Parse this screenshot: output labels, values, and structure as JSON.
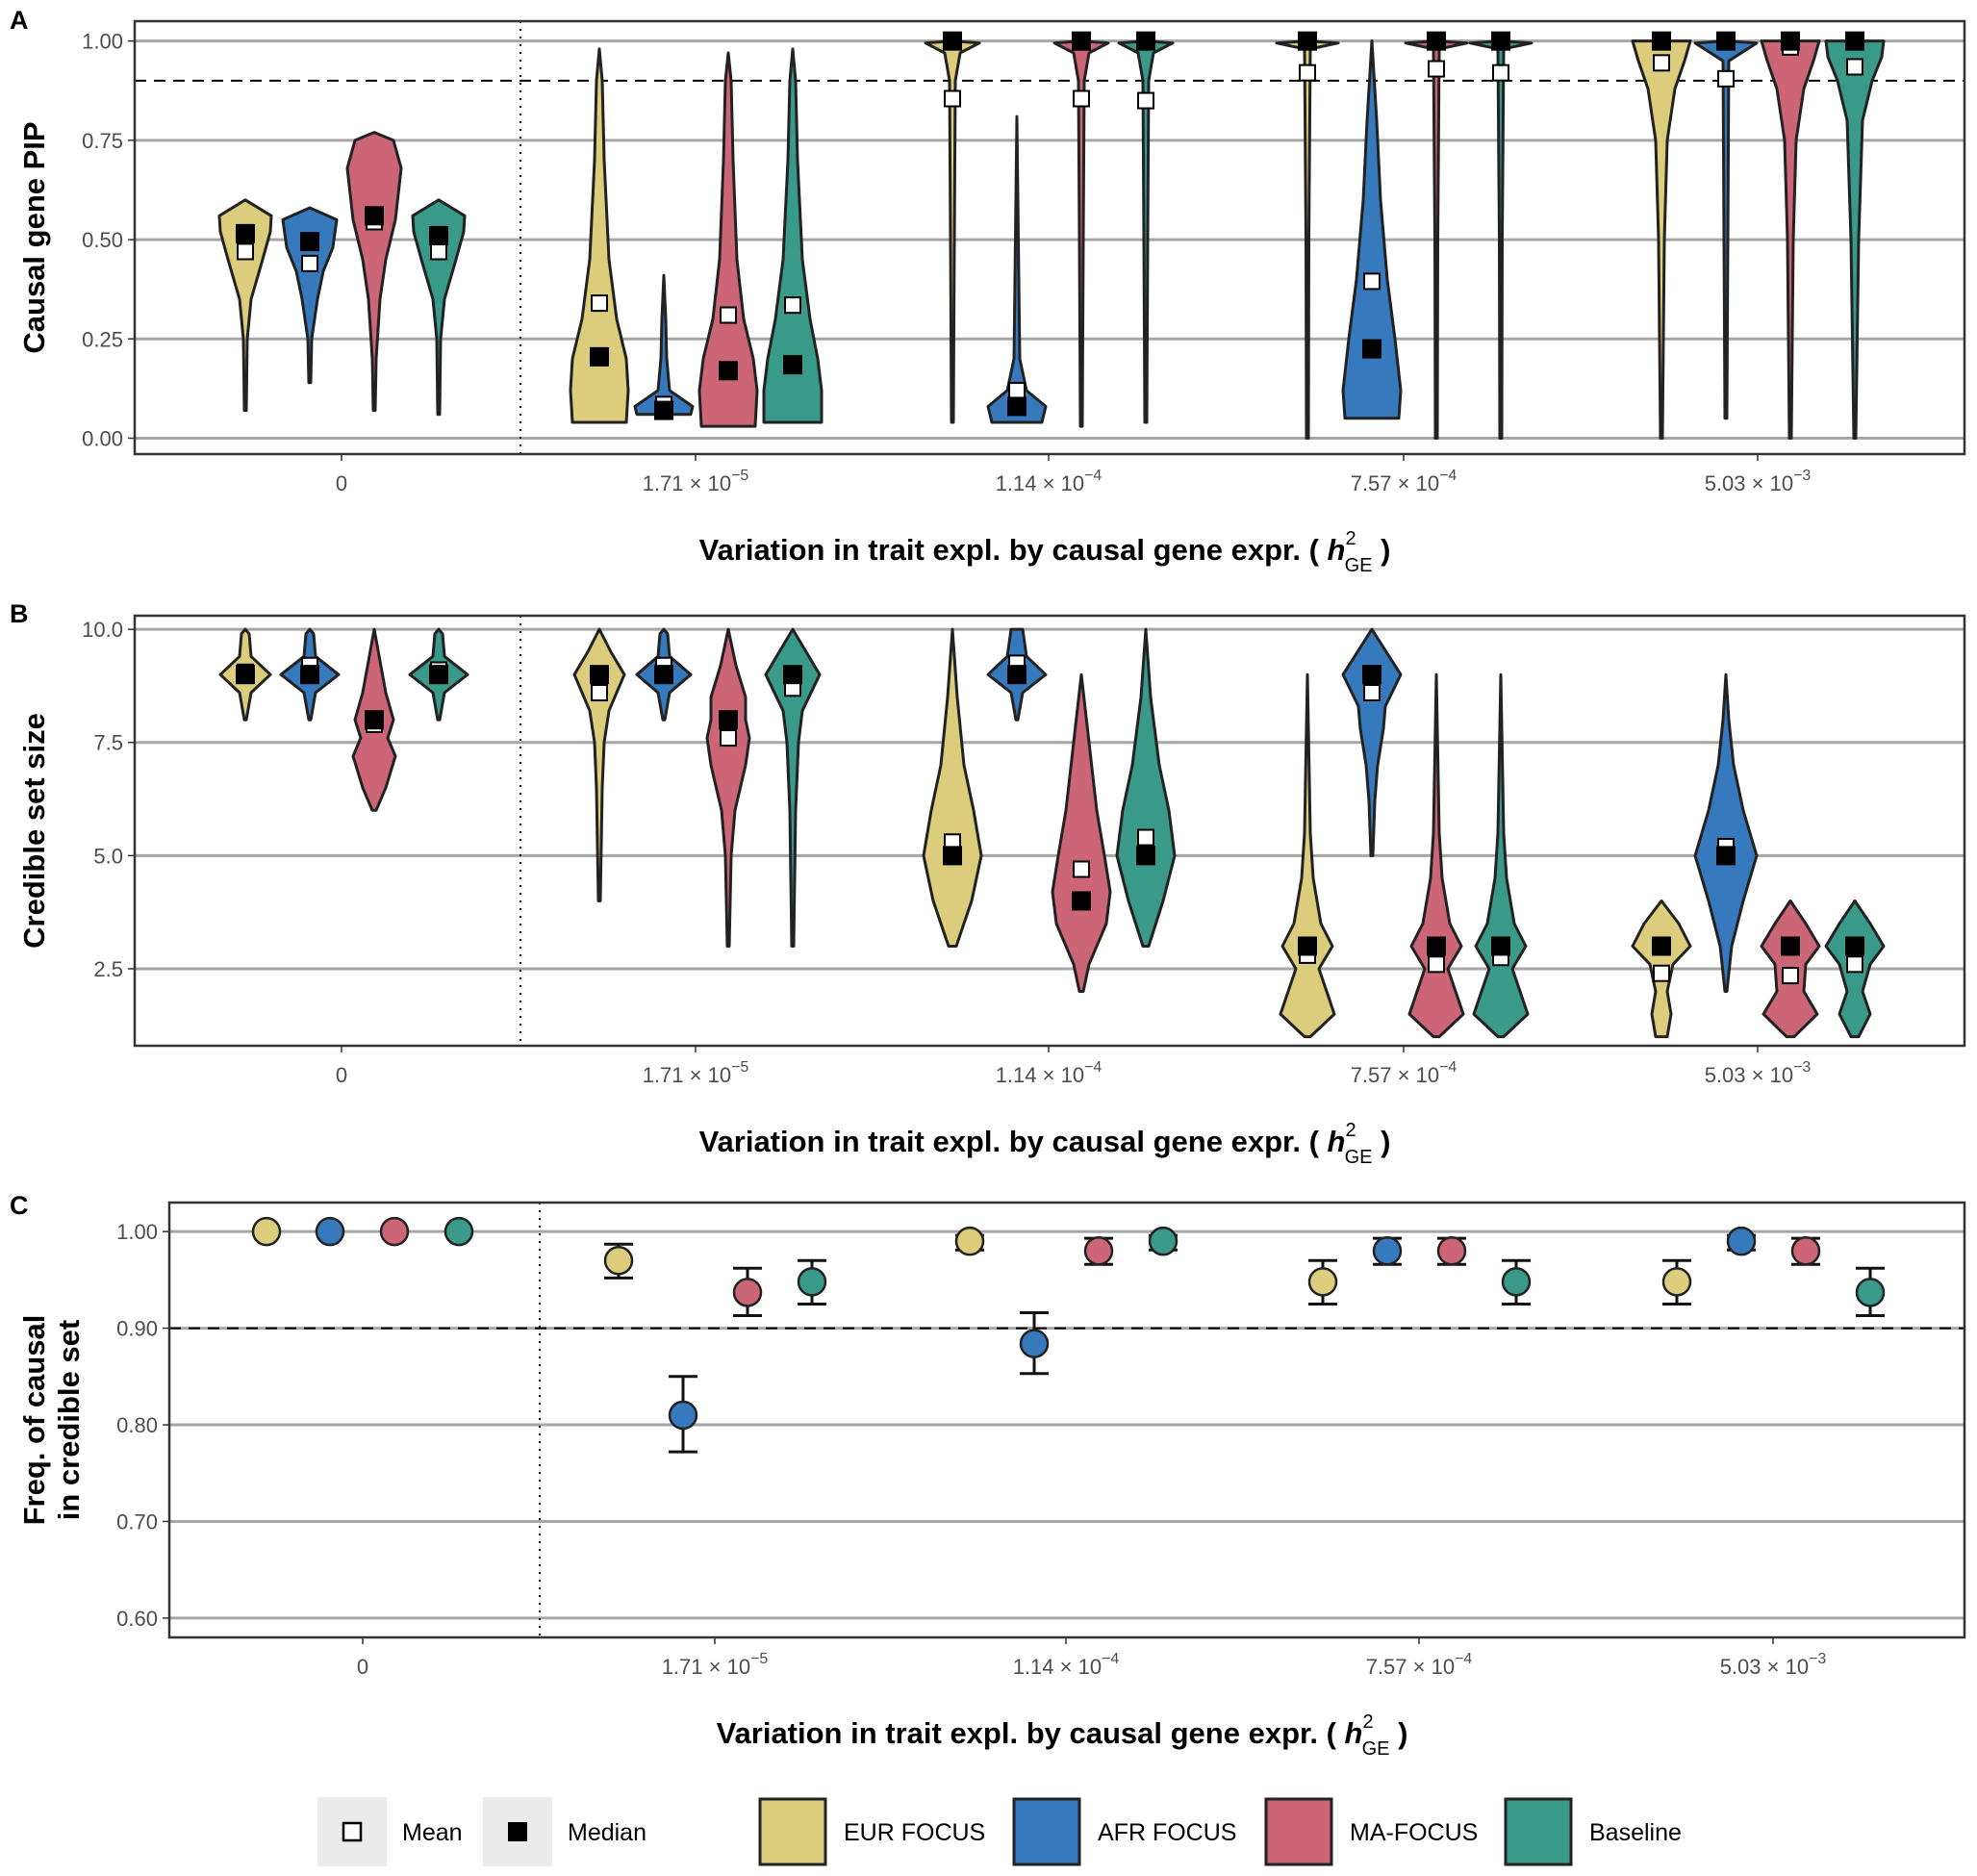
{
  "colors": {
    "eur": "#dccd7d",
    "afr": "#3779bd",
    "ma": "#cc6677",
    "base": "#3a9a8a"
  },
  "legend": {
    "stats": [
      {
        "key": "mean",
        "label": "Mean"
      },
      {
        "key": "median",
        "label": "Median"
      }
    ],
    "groups": [
      {
        "key": "eur",
        "label": "EUR FOCUS"
      },
      {
        "key": "afr",
        "label": "AFR FOCUS"
      },
      {
        "key": "ma",
        "label": "MA-FOCUS"
      },
      {
        "key": "base",
        "label": "Baseline"
      }
    ]
  },
  "chart_data": [
    {
      "panel": "A",
      "type": "violin",
      "ylabel": "Causal gene PIP",
      "xlabel": "Variation in trait expl. by causal gene expr. (",
      "xlabel_sym": "h",
      "xlabel_sup": "2",
      "xlabel_sub": "GE",
      "xlabel_end": ")",
      "categories": [
        {
          "base": "0"
        },
        {
          "base": "1.71",
          "exp": "−5"
        },
        {
          "base": "1.14",
          "exp": "−4"
        },
        {
          "base": "7.57",
          "exp": "−4"
        },
        {
          "base": "5.03",
          "exp": "−3"
        }
      ],
      "ylim": [
        -0.04,
        1.05
      ],
      "yticks": [
        0.0,
        0.25,
        0.5,
        0.75,
        1.0
      ],
      "ytick_labels": [
        "0.00",
        "0.25",
        "0.50",
        "0.75",
        "1.00"
      ],
      "hline": 0.9,
      "series": [
        {
          "key": "eur",
          "mean": [
            0.47,
            0.34,
            0.855,
            0.92,
            0.945
          ],
          "median": [
            0.515,
            0.205,
            1.0,
            1.0,
            1.0
          ]
        },
        {
          "key": "afr",
          "mean": [
            0.44,
            0.085,
            0.12,
            0.395,
            0.905
          ],
          "median": [
            0.495,
            0.07,
            0.08,
            0.225,
            1.0
          ]
        },
        {
          "key": "ma",
          "mean": [
            0.545,
            0.31,
            0.855,
            0.93,
            0.985
          ],
          "median": [
            0.56,
            0.17,
            1.0,
            1.0,
            1.0
          ]
        },
        {
          "key": "base",
          "mean": [
            0.47,
            0.335,
            0.85,
            0.92,
            0.935
          ],
          "median": [
            0.51,
            0.185,
            1.0,
            1.0,
            1.0
          ]
        }
      ]
    },
    {
      "panel": "B",
      "type": "violin",
      "ylabel": "Credible set size",
      "xlabel": "Variation in trait expl. by causal gene expr. (",
      "xlabel_sym": "h",
      "xlabel_sup": "2",
      "xlabel_sub": "GE",
      "xlabel_end": ")",
      "categories": [
        {
          "base": "0"
        },
        {
          "base": "1.71",
          "exp": "−5"
        },
        {
          "base": "1.14",
          "exp": "−4"
        },
        {
          "base": "7.57",
          "exp": "−4"
        },
        {
          "base": "5.03",
          "exp": "−3"
        }
      ],
      "ylim": [
        0.8,
        10.3
      ],
      "yticks": [
        2.5,
        5.0,
        7.5,
        10.0
      ],
      "ytick_labels": [
        "2.5",
        "5.0",
        "7.5",
        "10.0"
      ],
      "series": [
        {
          "key": "eur",
          "mean": [
            9.05,
            8.6,
            5.3,
            2.8,
            2.4
          ],
          "median": [
            9.0,
            9.0,
            5.0,
            3.0,
            3.0
          ]
        },
        {
          "key": "afr",
          "mean": [
            9.2,
            9.2,
            9.25,
            8.6,
            5.2
          ],
          "median": [
            9.0,
            9.0,
            9.0,
            9.0,
            5.0
          ]
        },
        {
          "key": "ma",
          "mean": [
            7.9,
            7.6,
            4.7,
            2.6,
            2.35
          ],
          "median": [
            8.0,
            8.0,
            4.0,
            3.0,
            3.0
          ]
        },
        {
          "key": "base",
          "mean": [
            9.1,
            8.7,
            5.4,
            2.75,
            2.6
          ],
          "median": [
            9.0,
            9.0,
            5.0,
            3.0,
            3.0
          ]
        }
      ]
    },
    {
      "panel": "C",
      "type": "scatter",
      "ylabel": "Freq. of causal",
      "ylabel2": "in credible set",
      "xlabel": "Variation in trait expl. by causal gene expr. (",
      "xlabel_sym": "h",
      "xlabel_sup": "2",
      "xlabel_sub": "GE",
      "xlabel_end": ")",
      "categories": [
        {
          "base": "0"
        },
        {
          "base": "1.71",
          "exp": "−5"
        },
        {
          "base": "1.14",
          "exp": "−4"
        },
        {
          "base": "7.57",
          "exp": "−4"
        },
        {
          "base": "5.03",
          "exp": "−3"
        }
      ],
      "ylim": [
        0.58,
        1.03
      ],
      "yticks": [
        0.6,
        0.7,
        0.8,
        0.9,
        1.0
      ],
      "ytick_labels": [
        "0.60",
        "0.70",
        "0.80",
        "0.90",
        "1.00"
      ],
      "hline": 0.9,
      "series": [
        {
          "key": "eur",
          "values": [
            1.0,
            0.97,
            0.99,
            0.948,
            0.948
          ],
          "err_low": [
            null,
            0.952,
            0.981,
            0.925,
            0.925
          ],
          "err_high": [
            null,
            0.987,
            0.996,
            0.97,
            0.97
          ]
        },
        {
          "key": "afr",
          "values": [
            1.0,
            0.81,
            0.884,
            0.98,
            0.99
          ],
          "err_low": [
            null,
            0.772,
            0.853,
            0.966,
            0.981
          ],
          "err_high": [
            null,
            0.85,
            0.916,
            0.993,
            0.996
          ]
        },
        {
          "key": "ma",
          "values": [
            1.0,
            0.937,
            0.98,
            0.98,
            0.98
          ],
          "err_low": [
            null,
            0.913,
            0.966,
            0.966,
            0.966
          ],
          "err_high": [
            null,
            0.962,
            0.993,
            0.993,
            0.993
          ]
        },
        {
          "key": "base",
          "values": [
            1.0,
            0.948,
            0.99,
            0.948,
            0.937
          ],
          "err_low": [
            null,
            0.925,
            0.981,
            0.925,
            0.913
          ],
          "err_high": [
            null,
            0.97,
            0.996,
            0.97,
            0.962
          ]
        }
      ]
    }
  ]
}
